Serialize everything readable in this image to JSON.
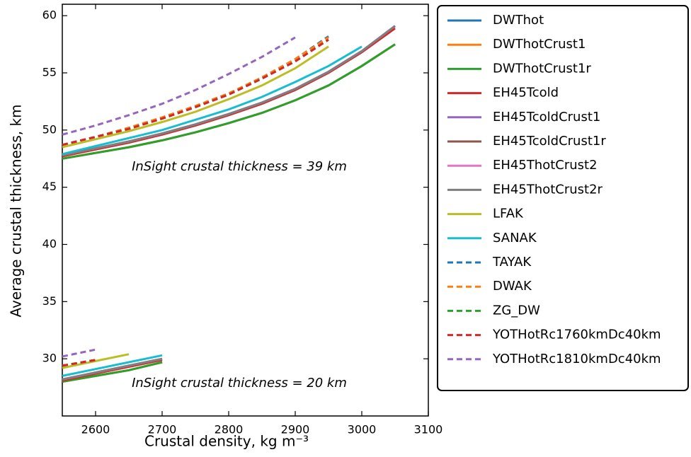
{
  "chart_data": {
    "type": "line",
    "xlabel": "Crustal density, kg m⁻³",
    "ylabel": "Average crustal thickness, km",
    "annotations": [
      "InSight crustal thickness = 39 km",
      "InSight crustal thickness = 20 km"
    ],
    "x": [
      2550,
      2600,
      2650,
      2700,
      2750,
      2800,
      2850,
      2900,
      2950,
      3000,
      3050,
      null,
      2550,
      2600,
      2650,
      2700
    ],
    "xlim": [
      2550,
      3100
    ],
    "xticks": [
      2600,
      2700,
      2800,
      2900,
      3000,
      3100
    ],
    "ylim": [
      25,
      61
    ],
    "yticks": [
      30,
      35,
      40,
      45,
      50,
      55,
      60
    ],
    "legend": "outside-right",
    "series": [
      {
        "name": "DWThot",
        "color": "#1f77b4",
        "dash": false,
        "values": [
          47.5,
          48.0,
          48.5,
          49.1,
          49.8,
          50.6,
          51.5,
          52.6,
          53.9,
          55.6,
          57.5,
          null,
          28.0,
          28.5,
          29.0,
          29.7
        ]
      },
      {
        "name": "DWThotCrust1",
        "color": "#ff7f0e",
        "dash": false,
        "values": [
          47.5,
          48.0,
          48.5,
          49.1,
          49.8,
          50.6,
          51.5,
          52.6,
          53.9,
          55.6,
          57.5,
          null,
          28.0,
          28.5,
          29.0,
          29.7
        ]
      },
      {
        "name": "DWThotCrust1r",
        "color": "#2ca02c",
        "dash": false,
        "values": [
          47.5,
          48.0,
          48.5,
          49.1,
          49.8,
          50.6,
          51.5,
          52.6,
          53.9,
          55.6,
          57.5,
          null,
          28.0,
          28.5,
          29.0,
          29.7
        ]
      },
      {
        "name": "EH45Tcold",
        "color": "#d62728",
        "dash": false,
        "values": [
          47.7,
          48.3,
          48.9,
          49.6,
          50.4,
          51.3,
          52.3,
          53.5,
          55.0,
          56.8,
          58.9,
          null,
          28.1,
          28.7,
          29.3,
          29.9
        ]
      },
      {
        "name": "EH45TcoldCrust1",
        "color": "#9467bd",
        "dash": false,
        "values": [
          47.8,
          48.4,
          49.0,
          49.7,
          50.5,
          51.4,
          52.4,
          53.6,
          55.1,
          56.9,
          59.1,
          null,
          28.2,
          28.8,
          29.4,
          30.0
        ]
      },
      {
        "name": "EH45TcoldCrust1r",
        "color": "#8c564b",
        "dash": false,
        "values": [
          47.8,
          48.4,
          49.0,
          49.7,
          50.5,
          51.4,
          52.4,
          53.6,
          55.1,
          56.9,
          59.1,
          null,
          28.2,
          28.8,
          29.4,
          30.0
        ]
      },
      {
        "name": "EH45ThotCrust2",
        "color": "#e377c2",
        "dash": false,
        "values": [
          47.8,
          48.4,
          49.0,
          49.7,
          50.5,
          51.4,
          52.4,
          53.6,
          55.1,
          56.9,
          59.1,
          null,
          28.2,
          28.8,
          29.4,
          30.0
        ]
      },
      {
        "name": "EH45ThotCrust2r",
        "color": "#7f7f7f",
        "dash": false,
        "values": [
          47.8,
          48.4,
          49.0,
          49.7,
          50.5,
          51.4,
          52.4,
          53.6,
          55.1,
          56.9,
          59.1,
          null,
          28.2,
          28.8,
          29.4,
          30.0
        ]
      },
      {
        "name": "LFAK",
        "color": "#bcbd22",
        "dash": false,
        "values": [
          48.5,
          49.2,
          49.9,
          50.7,
          51.6,
          52.7,
          53.9,
          55.4,
          57.3,
          null,
          null,
          null,
          29.2,
          29.8,
          30.4,
          null
        ]
      },
      {
        "name": "SANAK",
        "color": "#17becf",
        "dash": false,
        "values": [
          47.9,
          48.6,
          49.3,
          50.0,
          50.9,
          51.8,
          52.9,
          54.2,
          55.6,
          57.3,
          null,
          null,
          28.5,
          29.1,
          29.7,
          30.3
        ]
      },
      {
        "name": "TAYAK",
        "color": "#1f77b4",
        "dash": true,
        "values": [
          48.7,
          49.4,
          50.2,
          51.1,
          52.1,
          53.2,
          54.6,
          56.2,
          58.2,
          null,
          null,
          null,
          29.4,
          29.9,
          null,
          null
        ]
      },
      {
        "name": "DWAK",
        "color": "#ff7f0e",
        "dash": true,
        "values": [
          48.7,
          49.4,
          50.2,
          51.1,
          52.1,
          53.2,
          54.6,
          56.2,
          58.1,
          null,
          null,
          null,
          29.4,
          29.9,
          null,
          null
        ]
      },
      {
        "name": "ZG_DW",
        "color": "#2ca02c",
        "dash": true,
        "values": [
          48.7,
          49.4,
          50.1,
          51.0,
          52.0,
          53.1,
          54.5,
          56.0,
          57.9,
          null,
          null,
          null,
          29.4,
          29.9,
          null,
          null
        ]
      },
      {
        "name": "YOTHotRc1760kmDc40km",
        "color": "#d62728",
        "dash": true,
        "values": [
          48.7,
          49.4,
          50.1,
          51.0,
          52.0,
          53.1,
          54.5,
          56.0,
          57.9,
          null,
          null,
          null,
          29.4,
          29.9,
          null,
          null
        ]
      },
      {
        "name": "YOTHotRc1810kmDc40km",
        "color": "#9467bd",
        "dash": true,
        "values": [
          49.6,
          50.4,
          51.3,
          52.3,
          53.5,
          54.9,
          56.4,
          58.1,
          null,
          null,
          null,
          null,
          30.2,
          30.8,
          null,
          null
        ]
      }
    ]
  }
}
